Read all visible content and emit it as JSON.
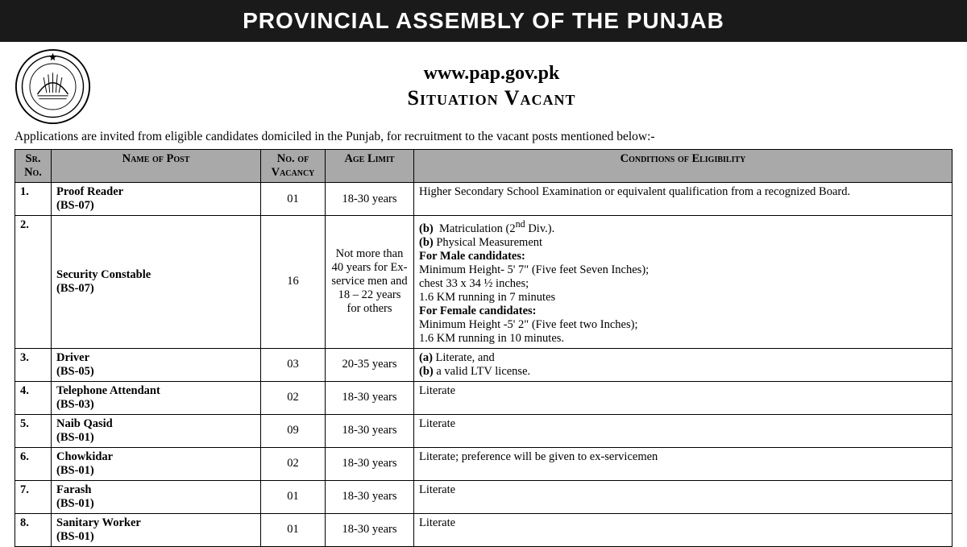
{
  "banner": "PROVINCIAL ASSEMBLY OF THE PUNJAB",
  "website": "www.pap.gov.pk",
  "situation_vacant": "Situation Vacant",
  "intro": "Applications are invited from eligible candidates domiciled in the Punjab, for recruitment to the vacant posts mentioned below:-",
  "columns": {
    "sr": "Sr. No.",
    "post": "Name of Post",
    "vac": "No. of Vacancy",
    "age": "Age Limit",
    "cond": "Conditions of Eligibility"
  },
  "rows": [
    {
      "sr": "1.",
      "post_name": "Proof Reader",
      "post_scale": "(BS-07)",
      "vac": "01",
      "age": "18-30 years",
      "cond_html": "Higher Secondary School Examination or equivalent qualification from a recognized Board."
    },
    {
      "sr": "2.",
      "post_name": "Security Constable",
      "post_scale": "(BS-07)",
      "vac": "16",
      "age": "Not more than 40 years for Ex-service men and 18 – 22 years for others",
      "cond_html": "<span class='cond-line'><b>(b)</b>&nbsp;&nbsp;Matriculation (2<sup>nd</sup> Div.).</span><span class='cond-line'><b>(b)</b> Physical Measurement</span><span class='cond-line'><b>For Male candidates:</b></span><span class='cond-line'>Minimum Height- 5' 7\" (Five feet Seven Inches);</span><span class='cond-line'>chest 33 x 34 ½ inches;</span><span class='cond-line'>1.6 KM running in 7 minutes</span><span class='cond-line'><b>For Female candidates:</b></span><span class='cond-line'>Minimum Height -5' 2\" (Five feet two Inches);</span><span class='cond-line'>1.6 KM running in 10 minutes.</span>"
    },
    {
      "sr": "3.",
      "post_name": "Driver",
      "post_scale": "(BS-05)",
      "vac": "03",
      "age": "20-35 years",
      "cond_html": "<span class='cond-line'><b>(a)</b> Literate, and</span><span class='cond-line'><b>(b)</b> a valid LTV license.</span>"
    },
    {
      "sr": "4.",
      "post_name": "Telephone Attendant",
      "post_scale": "(BS-03)",
      "vac": "02",
      "age": "18-30 years",
      "cond_html": "Literate"
    },
    {
      "sr": "5.",
      "post_name": "Naib Qasid",
      "post_scale": "(BS-01)",
      "vac": "09",
      "age": "18-30 years",
      "cond_html": "Literate"
    },
    {
      "sr": "6.",
      "post_name": "Chowkidar",
      "post_scale": "(BS-01)",
      "vac": "02",
      "age": "18-30 years",
      "cond_html": "Literate; preference will be given to ex-servicemen"
    },
    {
      "sr": "7.",
      "post_name": "Farash",
      "post_scale": "(BS-01)",
      "vac": "01",
      "age": "18-30 years",
      "cond_html": "Literate"
    },
    {
      "sr": "8.",
      "post_name": "Sanitary Worker",
      "post_scale": "(BS-01)",
      "vac": "01",
      "age": "18-30 years",
      "cond_html": "Literate"
    }
  ]
}
